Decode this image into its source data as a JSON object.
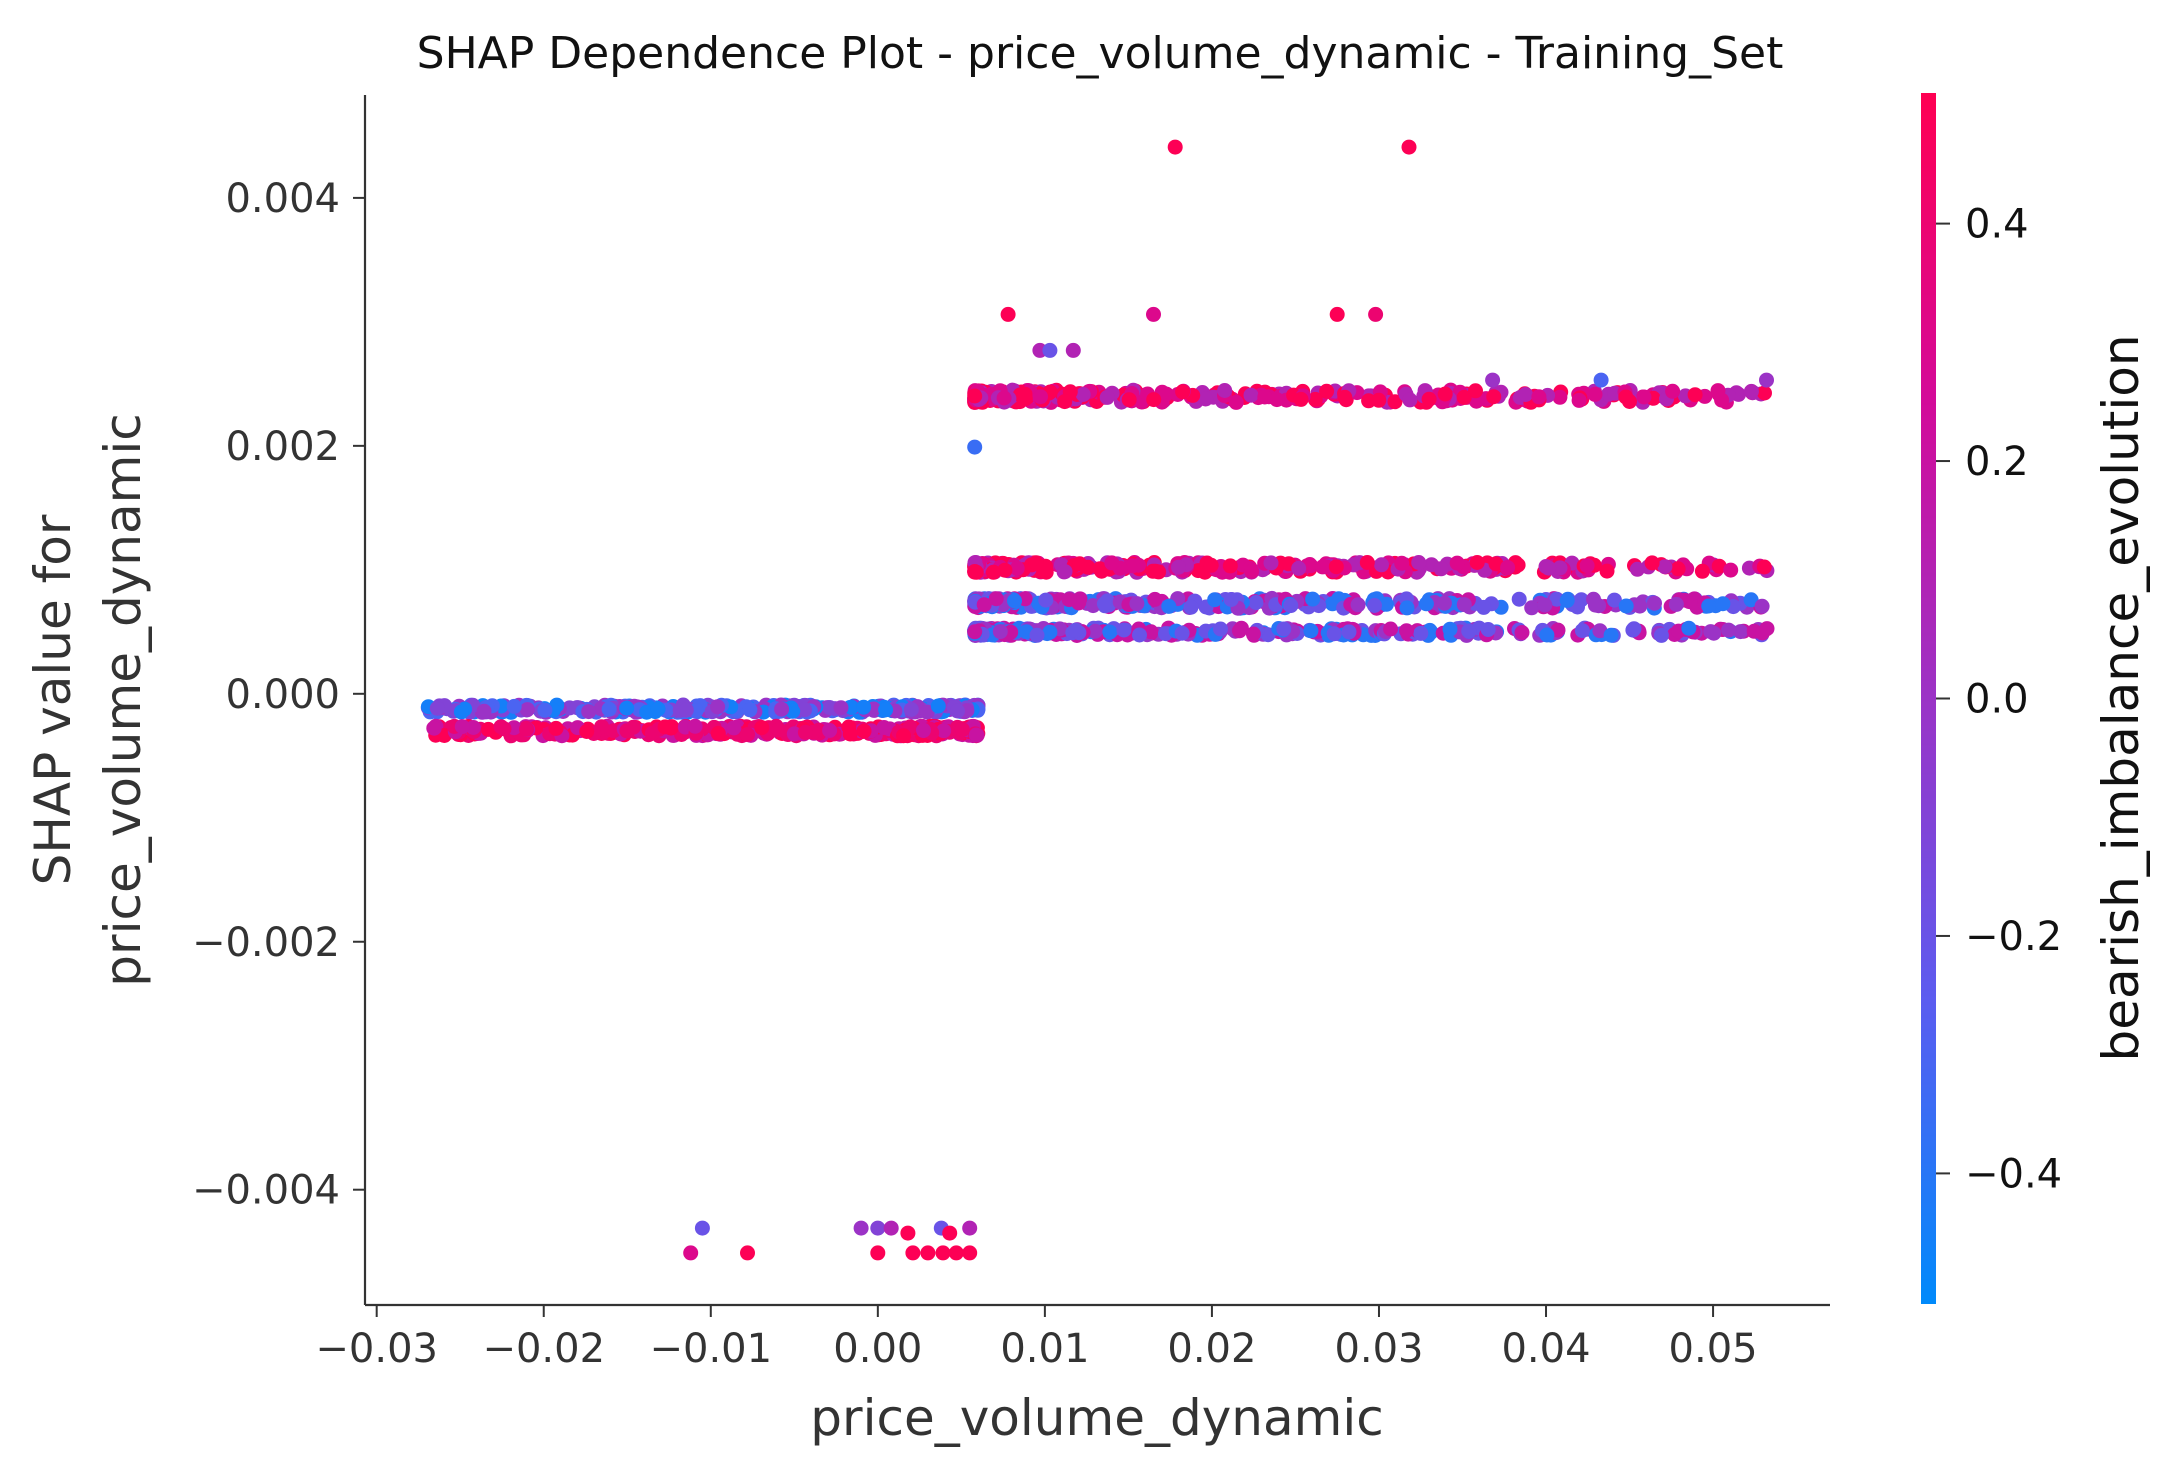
{
  "chart_data": {
    "type": "scatter",
    "title": "SHAP Dependence Plot - price_volume_dynamic - Training_Set",
    "xlabel": "price_volume_dynamic",
    "ylabel_lines": [
      "SHAP value for",
      "price_volume_dynamic"
    ],
    "xlim": [
      -0.0307,
      0.057
    ],
    "ylim": [
      -0.00493,
      0.00483
    ],
    "x_ticks": [
      -0.03,
      -0.02,
      -0.01,
      0.0,
      0.01,
      0.02,
      0.03,
      0.04,
      0.05
    ],
    "x_tick_labels": [
      "−0.03",
      "−0.02",
      "−0.01",
      "0.00",
      "0.01",
      "0.02",
      "0.03",
      "0.04",
      "0.05"
    ],
    "y_ticks": [
      -0.004,
      -0.002,
      0.0,
      0.002,
      0.004
    ],
    "y_tick_labels": [
      "−0.004",
      "−0.002",
      "0.000",
      "0.002",
      "0.004"
    ],
    "colorbar": {
      "label": "bearish_imbalance_evolution",
      "range": [
        -0.51,
        0.51
      ],
      "ticks": [
        -0.4,
        -0.2,
        0.0,
        0.2,
        0.4
      ],
      "tick_labels": [
        "−0.4",
        "−0.2",
        "0.0",
        "0.2",
        "0.4"
      ],
      "colormap": [
        "#008afb",
        "#ff0052"
      ]
    },
    "grid": false,
    "series_description": "SHAP value vs feature value, points colored by bearish_imbalance_evolution",
    "points": [
      {
        "x": 0.0178,
        "y": 0.00441,
        "c": 0.5
      },
      {
        "x": 0.0318,
        "y": 0.00441,
        "c": 0.5
      },
      {
        "x": 0.0078,
        "y": 0.00306,
        "c": 0.5
      },
      {
        "x": 0.0165,
        "y": 0.00306,
        "c": 0.3
      },
      {
        "x": 0.0275,
        "y": 0.00306,
        "c": 0.5
      },
      {
        "x": 0.0298,
        "y": 0.00306,
        "c": 0.4
      },
      {
        "x": 0.0097,
        "y": 0.00277,
        "c": 0.1
      },
      {
        "x": 0.0103,
        "y": 0.00277,
        "c": -0.2
      },
      {
        "x": 0.0117,
        "y": 0.00277,
        "c": 0.1
      },
      {
        "x": 0.0368,
        "y": 0.00253,
        "c": 0.0
      },
      {
        "x": 0.0433,
        "y": 0.00253,
        "c": -0.3
      },
      {
        "x": 0.0532,
        "y": 0.00253,
        "c": 0.0
      },
      {
        "x": 0.0058,
        "y": 0.00199,
        "c": -0.35
      },
      {
        "x": -0.0105,
        "y": -0.00431,
        "c": -0.2
      },
      {
        "x": -0.0112,
        "y": -0.00451,
        "c": 0.3
      },
      {
        "x": -0.0078,
        "y": -0.00451,
        "c": 0.5
      },
      {
        "x": -0.001,
        "y": -0.00431,
        "c": 0.0
      },
      {
        "x": 0.0,
        "y": -0.00431,
        "c": -0.1
      },
      {
        "x": 0.0008,
        "y": -0.00431,
        "c": 0.1
      },
      {
        "x": 0.0018,
        "y": -0.00435,
        "c": 0.5
      },
      {
        "x": 0.0038,
        "y": -0.00431,
        "c": -0.2
      },
      {
        "x": 0.0043,
        "y": -0.00435,
        "c": 0.5
      },
      {
        "x": 0.0055,
        "y": -0.00431,
        "c": 0.1
      },
      {
        "x": 0.0,
        "y": -0.00451,
        "c": 0.5
      },
      {
        "x": 0.0021,
        "y": -0.00451,
        "c": 0.5
      },
      {
        "x": 0.003,
        "y": -0.00451,
        "c": 0.5
      },
      {
        "x": 0.0039,
        "y": -0.00451,
        "c": 0.5
      },
      {
        "x": 0.0047,
        "y": -0.00451,
        "c": 0.5
      },
      {
        "x": 0.0055,
        "y": -0.00451,
        "c": 0.5
      }
    ],
    "bands": [
      {
        "x_range": [
          0.0058,
          0.0533
        ],
        "y": 0.0024,
        "c_mix": [
          0.5,
          0.3,
          0.1
        ],
        "density": "dense-left",
        "jitter": 5e-05
      },
      {
        "x_range": [
          0.0058,
          0.0533
        ],
        "y": 0.00102,
        "c_mix": [
          0.5,
          0.3,
          0.1
        ],
        "density": "dense-left",
        "jitter": 4e-05
      },
      {
        "x_range": [
          0.0058,
          0.0533
        ],
        "y": 0.00073,
        "c_mix": [
          0.0,
          -0.2,
          0.2,
          -0.4
        ],
        "density": "dense-left",
        "jitter": 4e-05
      },
      {
        "x_range": [
          0.0058,
          0.0533
        ],
        "y": 0.0005,
        "c_mix": [
          -0.2,
          -0.4,
          0.0,
          0.2
        ],
        "density": "dense-left",
        "jitter": 3e-05
      },
      {
        "x_range": [
          -0.027,
          0.006
        ],
        "y": -0.00012,
        "c_mix": [
          -0.1,
          -0.3,
          0.0,
          -0.45
        ],
        "density": "dense-right",
        "jitter": 3e-05
      },
      {
        "x_range": [
          -0.027,
          0.006
        ],
        "y": -0.0003,
        "c_mix": [
          0.4,
          0.2,
          0.5
        ],
        "density": "dense-right",
        "jitter": 4e-05
      }
    ]
  }
}
